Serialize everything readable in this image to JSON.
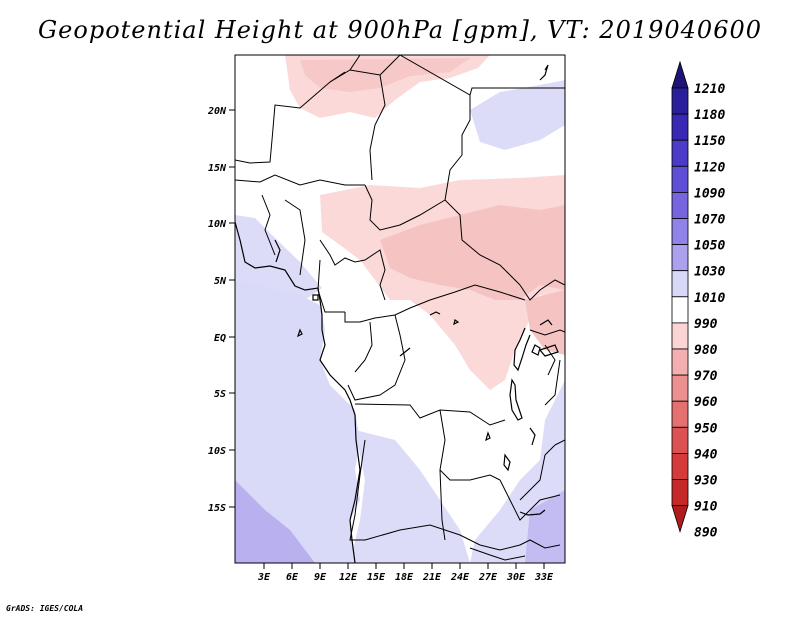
{
  "title": "Geopotential Height at 900hPa [gpm], VT: 2019040600",
  "credit": "GrADS: IGES/COLA",
  "map": {
    "lat_labels": [
      "20N",
      "15N",
      "10N",
      "5N",
      "EQ",
      "5S",
      "10S",
      "15S"
    ],
    "lon_labels": [
      "3E",
      "6E",
      "9E",
      "12E",
      "15E",
      "18E",
      "21E",
      "24E",
      "27E",
      "30E",
      "33E"
    ]
  },
  "colorbar": {
    "levels": [
      "1210",
      "1180",
      "1150",
      "1120",
      "1090",
      "1070",
      "1050",
      "1030",
      "1010",
      "990",
      "980",
      "970",
      "960",
      "950",
      "940",
      "930",
      "910",
      "890"
    ],
    "colors": [
      "#1e1478",
      "#2a1f9a",
      "#3829b4",
      "#4a3bc8",
      "#5e50d6",
      "#7566e0",
      "#8f82e8",
      "#aaa2ee",
      "#d8d9f8",
      "#ffffff",
      "#fbd5d5",
      "#f4b0b0",
      "#ec9090",
      "#e47070",
      "#dc5252",
      "#d43a3a",
      "#c42828",
      "#b01c1c"
    ]
  },
  "chart_data": {
    "type": "heatmap",
    "title": "Geopotential Height at 900hPa [gpm], VT: 2019040600",
    "variable": "Geopotential Height",
    "level": "900hPa",
    "units": "gpm",
    "valid_time": "2019040600",
    "lon_range": [
      0,
      35
    ],
    "lat_range": [
      -20,
      25
    ],
    "colorbar_levels": [
      1210,
      1180,
      1150,
      1120,
      1090,
      1070,
      1050,
      1030,
      1010,
      990,
      980,
      970,
      960,
      950,
      940,
      930,
      910,
      890
    ]
  }
}
